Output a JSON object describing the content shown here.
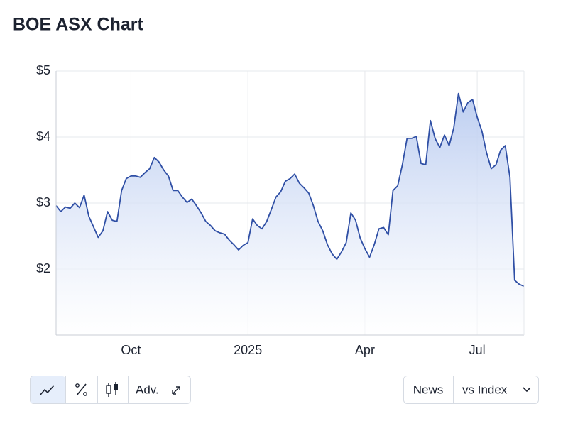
{
  "chart_data": {
    "type": "line",
    "title": "BOE ASX Chart",
    "categories": [
      null,
      null,
      null,
      null,
      null,
      null,
      null,
      null,
      null,
      null,
      null,
      null,
      null,
      null,
      null,
      null,
      "Oct",
      null,
      null,
      null,
      null,
      null,
      null,
      null,
      null,
      null,
      null,
      null,
      null,
      null,
      null,
      null,
      null,
      null,
      null,
      null,
      null,
      null,
      null,
      null,
      null,
      "2025",
      null,
      null,
      null,
      null,
      null,
      null,
      null,
      null,
      null,
      null,
      null,
      null,
      null,
      null,
      null,
      null,
      null,
      null,
      null,
      null,
      null,
      null,
      null,
      null,
      "Apr",
      null,
      null,
      null,
      null,
      null,
      null,
      null,
      null,
      null,
      null,
      null,
      null,
      null,
      null,
      null,
      null,
      null,
      null,
      null,
      null,
      null,
      null,
      null,
      "Jul",
      null,
      null,
      null,
      null,
      null,
      null,
      null,
      null,
      null,
      null
    ],
    "values": [
      2.96,
      2.87,
      2.94,
      2.92,
      3.0,
      2.93,
      3.12,
      2.8,
      2.64,
      2.48,
      2.58,
      2.87,
      2.74,
      2.72,
      3.19,
      3.37,
      3.41,
      3.41,
      3.39,
      3.46,
      3.52,
      3.69,
      3.62,
      3.5,
      3.41,
      3.19,
      3.19,
      3.09,
      3.01,
      3.06,
      2.96,
      2.85,
      2.72,
      2.66,
      2.58,
      2.55,
      2.53,
      2.44,
      2.37,
      2.29,
      2.36,
      2.4,
      2.76,
      2.66,
      2.61,
      2.72,
      2.9,
      3.09,
      3.17,
      3.33,
      3.37,
      3.44,
      3.3,
      3.23,
      3.15,
      2.96,
      2.72,
      2.58,
      2.37,
      2.23,
      2.15,
      2.26,
      2.4,
      2.85,
      2.74,
      2.47,
      2.31,
      2.18,
      2.37,
      2.61,
      2.63,
      2.52,
      3.19,
      3.26,
      3.58,
      3.98,
      3.98,
      4.01,
      3.6,
      3.58,
      4.25,
      3.98,
      3.84,
      4.03,
      3.87,
      4.14,
      4.66,
      4.38,
      4.52,
      4.57,
      4.3,
      4.09,
      3.76,
      3.52,
      3.58,
      3.8,
      3.87,
      3.39,
      1.83,
      1.77,
      1.74
    ],
    "color": "#2f4fa5",
    "ylim": [
      1,
      5
    ],
    "yticks": [
      {
        "value": 2,
        "label": "$2"
      },
      {
        "value": 3,
        "label": "$3"
      },
      {
        "value": 4,
        "label": "$4"
      },
      {
        "value": 5,
        "label": "$5"
      }
    ],
    "grid": true
  },
  "controls": {
    "left": [
      "Adv."
    ],
    "right": [
      "News",
      "vs Index"
    ]
  }
}
